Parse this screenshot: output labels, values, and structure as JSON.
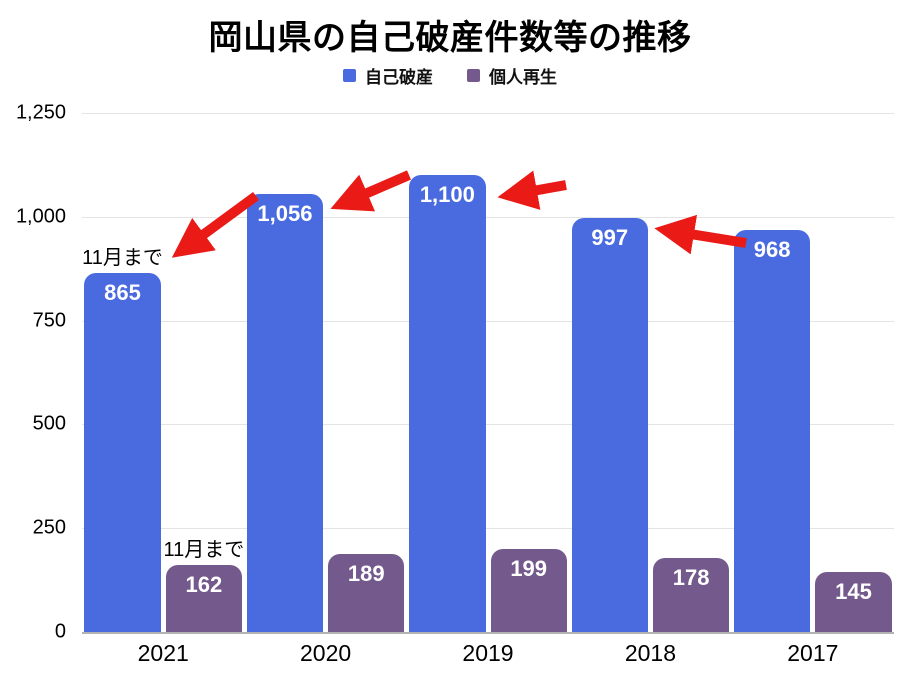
{
  "title": "岡山県の自己破産件数等の推移",
  "legend": {
    "items": [
      {
        "label": "自己破産",
        "color": "#4a6be0"
      },
      {
        "label": "個人再生",
        "color": "#74598c"
      }
    ]
  },
  "colors": {
    "bankruptcy_blue": "#4a6be0",
    "rehabilitation_purple": "#74598c",
    "arrow_red": "#ea1a17",
    "gridline": "#e4e4e4",
    "axis_line": "#b3b3b3"
  },
  "chart_data": {
    "type": "bar",
    "title": "岡山県の自己破産件数等の推移",
    "categories": [
      "2021",
      "2020",
      "2019",
      "2018",
      "2017"
    ],
    "series": [
      {
        "name": "自己破産",
        "color": "#4a6be0",
        "values": [
          865,
          1056,
          1100,
          997,
          968
        ],
        "value_labels": [
          "865",
          "1,056",
          "1,100",
          "997",
          "968"
        ]
      },
      {
        "name": "個人再生",
        "color": "#74598c",
        "values": [
          162,
          189,
          199,
          178,
          145
        ],
        "value_labels": [
          "162",
          "189",
          "199",
          "178",
          "145"
        ]
      }
    ],
    "ylim": [
      0,
      1250
    ],
    "yticks": [
      {
        "value": 1250,
        "label": "1,250"
      },
      {
        "value": 1000,
        "label": "1,000"
      },
      {
        "value": 750,
        "label": "750"
      },
      {
        "value": 500,
        "label": "500"
      },
      {
        "value": 250,
        "label": "250"
      },
      {
        "value": 0,
        "label": "0"
      }
    ],
    "annotations": [
      {
        "text": "11月まで",
        "series_index": 0,
        "category_index": 0
      },
      {
        "text": "11月まで",
        "series_index": 1,
        "category_index": 0
      }
    ],
    "grid": true,
    "legend_position": "top",
    "notes": "red arrows point right-to-left indicating reading order from 2017 toward 2021"
  }
}
